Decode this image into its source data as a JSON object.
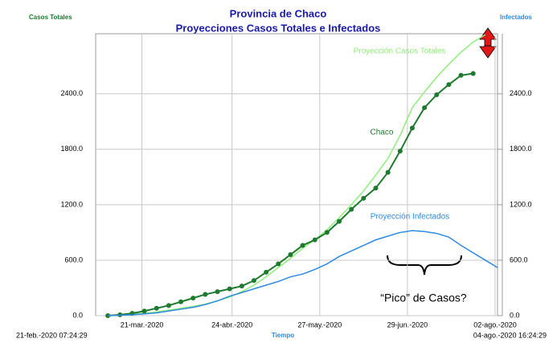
{
  "chart_data": {
    "type": "line",
    "title": "Provincia de Chaco",
    "subtitle": "Proyecciones Casos Totales e Infectados",
    "y_label": "Casos Totales",
    "y2_label": "Infectados",
    "x_label": "Tiempo",
    "x_start_label": "21-feb.-2020 07:24:29",
    "x_end_label": "04-ago.-2020 16:24:29",
    "x": [
      5,
      10,
      15,
      20,
      25,
      30,
      35,
      40,
      45,
      50,
      55,
      60,
      65,
      70,
      75,
      80,
      85,
      90,
      95,
      100,
      105,
      110,
      115,
      120,
      125,
      130,
      135,
      140,
      145,
      150,
      155,
      160,
      165
    ],
    "xlim": [
      0,
      165
    ],
    "xticks": [
      {
        "value": 19,
        "label": "21-mar.-2020"
      },
      {
        "value": 56,
        "label": "24-abr.-2020"
      },
      {
        "value": 92,
        "label": "27-may.-2020"
      },
      {
        "value": 128,
        "label": "29-jun.-2020"
      },
      {
        "value": 164,
        "label": "02-ago.-2020"
      }
    ],
    "ylim": [
      0,
      3050
    ],
    "yticks": [
      {
        "value": 0,
        "label": "0.0"
      },
      {
        "value": 600,
        "label": "600.0"
      },
      {
        "value": 1200,
        "label": "1200.0"
      },
      {
        "value": 1800,
        "label": "1800.0"
      },
      {
        "value": 2400,
        "label": "2400.0"
      }
    ],
    "y2lim": [
      0,
      3050
    ],
    "y2ticks": [
      {
        "value": 0,
        "label": "0.0"
      },
      {
        "value": 600,
        "label": "600.0"
      },
      {
        "value": 1200,
        "label": "1200.0"
      },
      {
        "value": 1800,
        "label": "1800.0"
      },
      {
        "value": 2400,
        "label": "2400.0"
      }
    ],
    "grid": true,
    "series": [
      {
        "name": "Proyección Casos Totales",
        "color": "#90ee7a",
        "markers": false,
        "values": [
          0,
          5,
          15,
          25,
          40,
          60,
          80,
          100,
          125,
          160,
          200,
          260,
          330,
          420,
          520,
          620,
          730,
          820,
          930,
          1060,
          1200,
          1350,
          1520,
          1700,
          1950,
          2250,
          2420,
          2580,
          2720,
          2850,
          2960,
          3040,
          null
        ]
      },
      {
        "name": "Chaco",
        "color": "#1e7a2e",
        "markers": true,
        "values": [
          0,
          10,
          25,
          50,
          80,
          110,
          150,
          190,
          230,
          260,
          290,
          320,
          380,
          470,
          560,
          660,
          760,
          820,
          900,
          1020,
          1150,
          1270,
          1380,
          1550,
          1780,
          2030,
          2250,
          2390,
          2500,
          2600,
          2620,
          null,
          null
        ]
      },
      {
        "name": "Proyección Infectados",
        "color": "#2d8ae0",
        "markers": false,
        "axis": "y2",
        "values": [
          0,
          5,
          10,
          20,
          30,
          50,
          70,
          90,
          120,
          160,
          210,
          250,
          290,
          330,
          370,
          420,
          450,
          500,
          560,
          640,
          700,
          760,
          820,
          860,
          900,
          920,
          910,
          890,
          850,
          760,
          680,
          600,
          520
        ]
      }
    ],
    "annotations": [
      {
        "text": "Proyección Casos Totales",
        "color": "#90ee7a"
      },
      {
        "text": "Chaco",
        "color": "#1e7a2e"
      },
      {
        "text": "Proyección Infectados",
        "color": "#2d8ae0"
      },
      {
        "text": "“Pico” de Casos?",
        "color": "#000000"
      }
    ]
  }
}
